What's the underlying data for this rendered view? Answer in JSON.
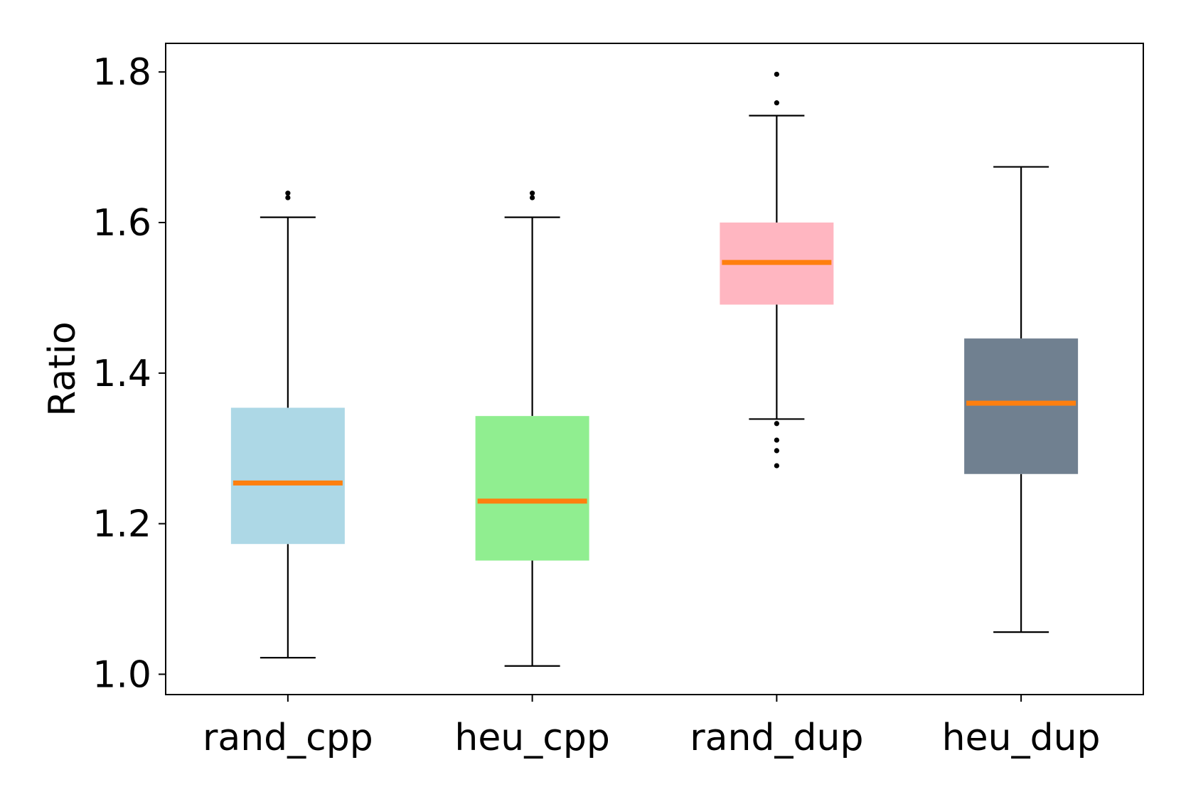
{
  "chart_data": {
    "type": "box",
    "title": "",
    "xlabel": "",
    "ylabel": "Ratio",
    "ylim": [
      0.973,
      1.838
    ],
    "yticks": [
      1.0,
      1.2,
      1.4,
      1.6,
      1.8
    ],
    "ytick_labels": [
      "1.0",
      "1.2",
      "1.4",
      "1.6",
      "1.8"
    ],
    "grid": false,
    "legend": "none",
    "median_color": "#ff7f0e",
    "categories": [
      "rand_cpp",
      "heu_cpp",
      "rand_dup",
      "heu_dup"
    ],
    "boxes": [
      {
        "label": "rand_cpp",
        "color": "#add8e6",
        "whisker_low": 1.022,
        "q1": 1.173,
        "median": 1.254,
        "q3": 1.354,
        "whisker_high": 1.607,
        "outliers": [
          1.633,
          1.639
        ]
      },
      {
        "label": "heu_cpp",
        "color": "#90ee90",
        "whisker_low": 1.011,
        "q1": 1.151,
        "median": 1.23,
        "q3": 1.343,
        "whisker_high": 1.607,
        "outliers": [
          1.633,
          1.639
        ]
      },
      {
        "label": "rand_dup",
        "color": "#ffb6c1",
        "whisker_low": 1.339,
        "q1": 1.491,
        "median": 1.547,
        "q3": 1.6,
        "whisker_high": 1.742,
        "outliers": [
          1.277,
          1.297,
          1.311,
          1.333,
          1.759,
          1.797
        ]
      },
      {
        "label": "heu_dup",
        "color": "#708090",
        "whisker_low": 1.056,
        "q1": 1.266,
        "median": 1.36,
        "q3": 1.446,
        "whisker_high": 1.674,
        "outliers": []
      }
    ]
  }
}
